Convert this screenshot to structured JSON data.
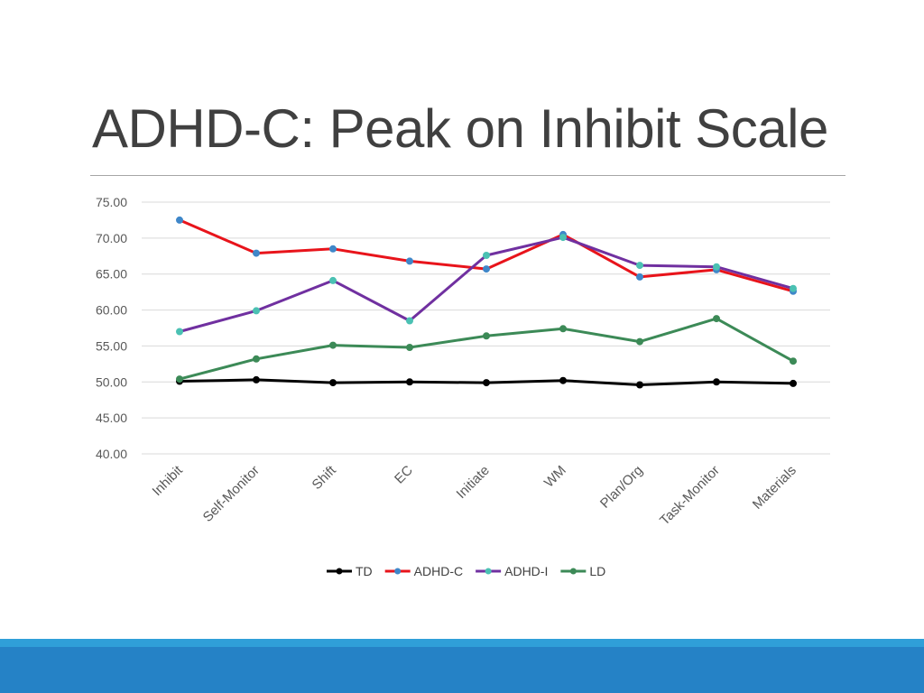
{
  "slide": {
    "title": "ADHD-C: Peak on Inhibit Scale"
  },
  "chart_data": {
    "type": "line",
    "title": "",
    "xlabel": "",
    "ylabel": "",
    "categories": [
      "Inhibit",
      "Self-Monitor",
      "Shift",
      "EC",
      "Initiate",
      "WM",
      "Plan/Org",
      "Task-Monitor",
      "Materials"
    ],
    "series": [
      {
        "name": "TD",
        "color": "#000000",
        "marker_color": "#000000",
        "values": [
          50.1,
          50.3,
          49.9,
          50.0,
          49.9,
          50.2,
          49.6,
          50.0,
          49.8
        ]
      },
      {
        "name": "ADHD-C",
        "color": "#e8141b",
        "marker_color": "#3f87c9",
        "values": [
          72.5,
          67.9,
          68.5,
          66.8,
          65.7,
          70.5,
          64.6,
          65.6,
          62.6
        ]
      },
      {
        "name": "ADHD-I",
        "color": "#7030a0",
        "marker_color": "#4bc1b3",
        "values": [
          57.0,
          59.9,
          64.1,
          58.5,
          67.6,
          70.1,
          66.2,
          66.0,
          63.0
        ]
      },
      {
        "name": "LD",
        "color": "#3c8a57",
        "marker_color": "#3c8a57",
        "values": [
          50.4,
          53.2,
          55.1,
          54.8,
          56.4,
          57.4,
          55.6,
          58.8,
          52.9
        ]
      }
    ],
    "ylim": [
      40,
      75
    ],
    "yticks": [
      "75.00",
      "70.00",
      "65.00",
      "60.00",
      "55.00",
      "50.00",
      "45.00",
      "40.00"
    ],
    "grid": true,
    "legend_position": "bottom"
  },
  "theme": {
    "band_light": "#2f9fd8",
    "band_dark": "#2582c6",
    "gridline": "#d9d9d9",
    "tick_text": "#595959"
  }
}
